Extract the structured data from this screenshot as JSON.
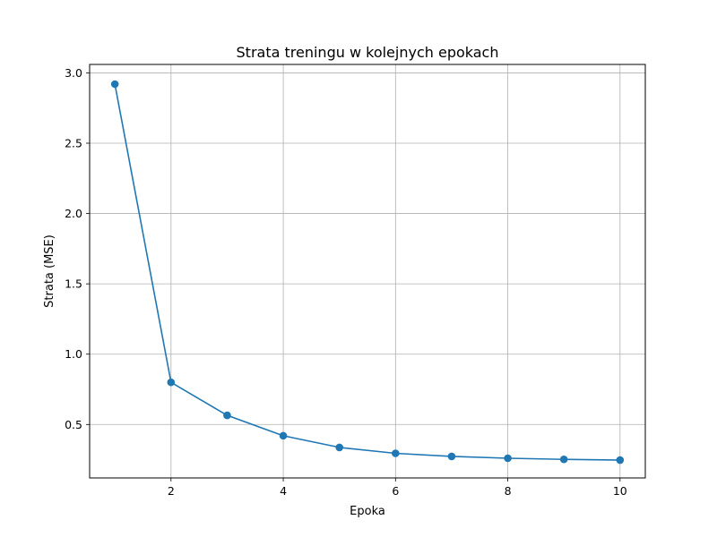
{
  "chart_data": {
    "type": "line",
    "title": "Strata treningu w kolejnych epokach",
    "xlabel": "Epoka",
    "ylabel": "Strata (MSE)",
    "xlim": [
      0.55,
      10.45
    ],
    "ylim": [
      0.12,
      3.06
    ],
    "xticks": [
      2,
      4,
      6,
      8,
      10
    ],
    "xtick_labels": [
      "2",
      "4",
      "6",
      "8",
      "10"
    ],
    "yticks": [
      0.5,
      1.0,
      1.5,
      2.0,
      2.5,
      3.0
    ],
    "ytick_labels": [
      "0.5",
      "1.0",
      "1.5",
      "2.0",
      "2.5",
      "3.0"
    ],
    "grid": true,
    "color": "#1f77b4",
    "marker": "circle",
    "series": [
      {
        "x": [
          1,
          2,
          3,
          4,
          5,
          6,
          7,
          8,
          9,
          10
        ],
        "values": [
          2.92,
          0.8,
          0.565,
          0.42,
          0.337,
          0.295,
          0.273,
          0.26,
          0.252,
          0.247
        ]
      }
    ]
  }
}
